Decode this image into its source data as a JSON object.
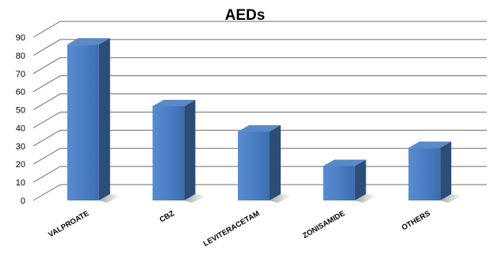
{
  "chart_data": {
    "type": "bar",
    "title": "AEDs",
    "xlabel": "",
    "ylabel": "",
    "categories": [
      "VALPROATE",
      "CBZ",
      "LEVITERACETAM",
      "ZONISAMIDE",
      "OTHERS"
    ],
    "values": [
      86,
      52,
      38,
      19,
      29
    ],
    "ylim": [
      0,
      90
    ],
    "yticks": [
      0,
      10,
      20,
      30,
      40,
      50,
      60,
      70,
      80,
      90
    ],
    "grid": true,
    "legend": "none",
    "style": "3d-column",
    "colors": {
      "bar_front": "#4f81bd",
      "bar_side": "#2c4d75",
      "bar_top": "#5a8ac6",
      "grid": "#6e6e6e"
    }
  }
}
